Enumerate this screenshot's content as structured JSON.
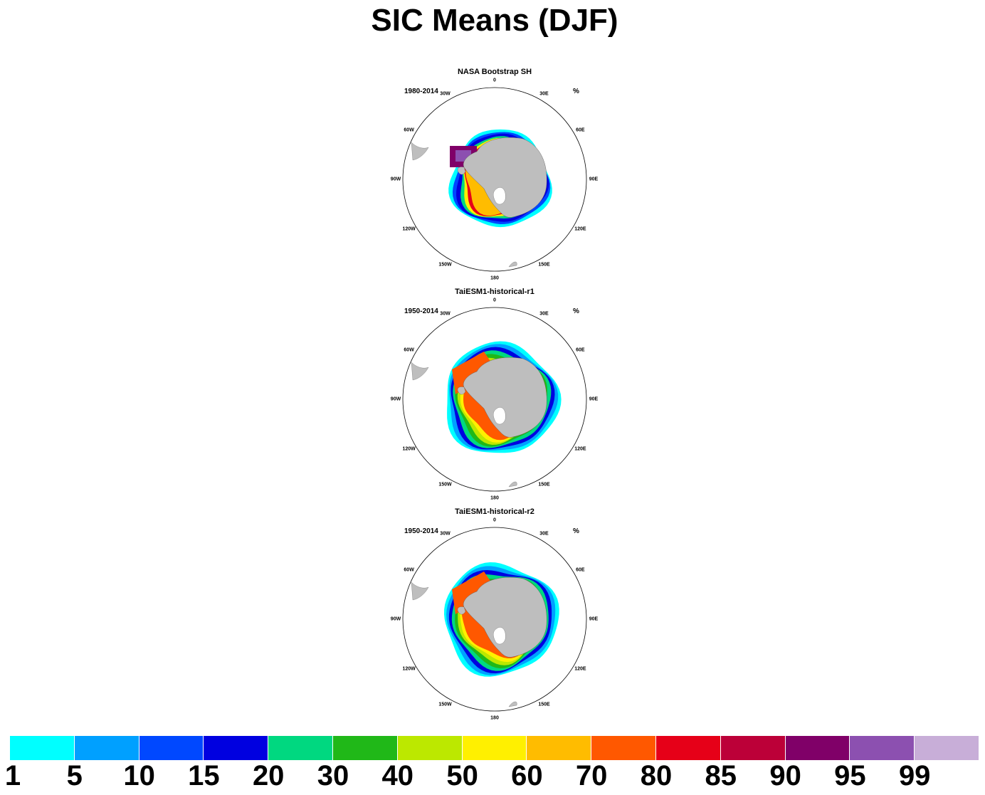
{
  "main_title": "SIC Means (DJF)",
  "panels": [
    {
      "title": "NASA Bootstrap SH",
      "period": "1980-2014",
      "unit": "%",
      "variant": "obs"
    },
    {
      "title": "TaiESM1-historical-r1",
      "period": "1950-2014",
      "unit": "%",
      "variant": "model"
    },
    {
      "title": "TaiESM1-historical-r2",
      "period": "1950-2014",
      "unit": "%",
      "variant": "model"
    }
  ],
  "longitude_labels": [
    "0",
    "30E",
    "60E",
    "90E",
    "120E",
    "150E",
    "180",
    "150W",
    "120W",
    "90W",
    "60W",
    "30W"
  ],
  "colorbar": {
    "colors": [
      "#00ffff",
      "#00a0ff",
      "#0048ff",
      "#0000e0",
      "#00d880",
      "#20b818",
      "#bce800",
      "#fff000",
      "#ffbc00",
      "#ff5800",
      "#e60018",
      "#bc0038",
      "#800068",
      "#8c50b0",
      "#c8aed8"
    ],
    "labels": [
      "1",
      "5",
      "10",
      "15",
      "20",
      "30",
      "40",
      "50",
      "60",
      "70",
      "80",
      "85",
      "90",
      "95",
      "99"
    ]
  }
}
